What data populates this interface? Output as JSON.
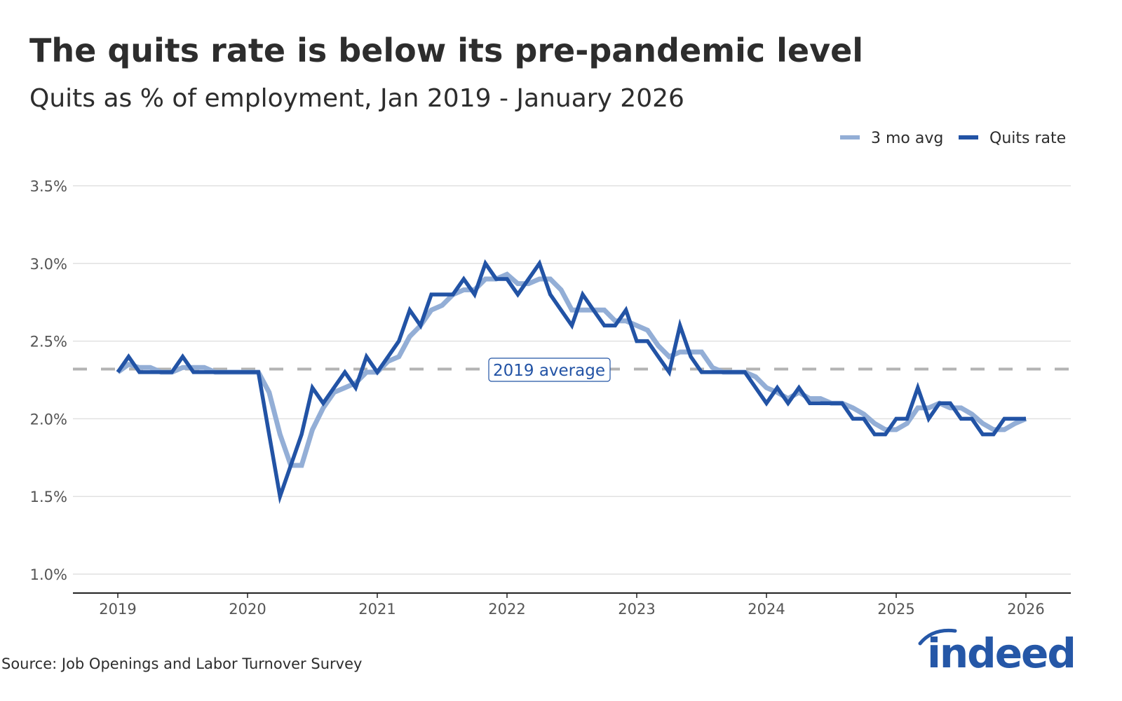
{
  "chart_data": {
    "type": "line",
    "title": "The quits rate is below its pre-pandemic level",
    "subtitle": "Quits as % of employment, Jan 2019 - January 2026",
    "xlabel": "",
    "ylabel": "",
    "x_start": "2019-01",
    "x_end": "2026-01",
    "x_frequency": "monthly",
    "xticks": [
      "2019",
      "2020",
      "2021",
      "2022",
      "2023",
      "2024",
      "2025",
      "2026"
    ],
    "yticks": [
      1.0,
      1.5,
      2.0,
      2.5,
      3.0,
      3.5
    ],
    "ytick_labels": [
      "1.0%",
      "1.5%",
      "2.0%",
      "2.5%",
      "3.0%",
      "3.5%"
    ],
    "ylim": [
      0.88,
      3.5
    ],
    "grid": "horizontal",
    "legend_placement": "top-right",
    "series": [
      {
        "name": "3 mo avg",
        "color": "#93aed6",
        "values": [
          2.3,
          2.35,
          2.33,
          2.33,
          2.3,
          2.3,
          2.33,
          2.33,
          2.33,
          2.3,
          2.3,
          2.3,
          2.3,
          2.3,
          2.17,
          1.9,
          1.7,
          1.7,
          1.93,
          2.07,
          2.17,
          2.2,
          2.23,
          2.3,
          2.3,
          2.37,
          2.4,
          2.53,
          2.6,
          2.7,
          2.73,
          2.8,
          2.83,
          2.83,
          2.9,
          2.9,
          2.93,
          2.87,
          2.87,
          2.9,
          2.9,
          2.83,
          2.7,
          2.7,
          2.7,
          2.7,
          2.63,
          2.63,
          2.6,
          2.57,
          2.47,
          2.4,
          2.43,
          2.43,
          2.43,
          2.33,
          2.3,
          2.3,
          2.3,
          2.27,
          2.2,
          2.17,
          2.13,
          2.17,
          2.13,
          2.13,
          2.1,
          2.1,
          2.07,
          2.03,
          1.97,
          1.93,
          1.93,
          1.97,
          2.07,
          2.07,
          2.1,
          2.07,
          2.07,
          2.03,
          1.97,
          1.93,
          1.93,
          1.97,
          2.0
        ]
      },
      {
        "name": "Quits rate",
        "color": "#2253a5",
        "values": [
          2.3,
          2.4,
          2.3,
          2.3,
          2.3,
          2.3,
          2.4,
          2.3,
          2.3,
          2.3,
          2.3,
          2.3,
          2.3,
          2.3,
          1.9,
          1.5,
          1.7,
          1.9,
          2.2,
          2.1,
          2.2,
          2.3,
          2.2,
          2.4,
          2.3,
          2.4,
          2.5,
          2.7,
          2.6,
          2.8,
          2.8,
          2.8,
          2.9,
          2.8,
          3.0,
          2.9,
          2.9,
          2.8,
          2.9,
          3.0,
          2.8,
          2.7,
          2.6,
          2.8,
          2.7,
          2.6,
          2.6,
          2.7,
          2.5,
          2.5,
          2.4,
          2.3,
          2.6,
          2.4,
          2.3,
          2.3,
          2.3,
          2.3,
          2.3,
          2.2,
          2.1,
          2.2,
          2.1,
          2.2,
          2.1,
          2.1,
          2.1,
          2.1,
          2.0,
          2.0,
          1.9,
          1.9,
          2.0,
          2.0,
          2.2,
          2.0,
          2.1,
          2.1,
          2.0,
          2.0,
          1.9,
          1.9,
          2.0,
          2.0,
          2.0
        ]
      }
    ],
    "reference_line": {
      "value": 2.32,
      "label": "2019 average",
      "color": "#b3b3b3",
      "style": "dashed"
    },
    "source": "Source: Job Openings and Labor Turnover Survey"
  },
  "logo": "indeed"
}
